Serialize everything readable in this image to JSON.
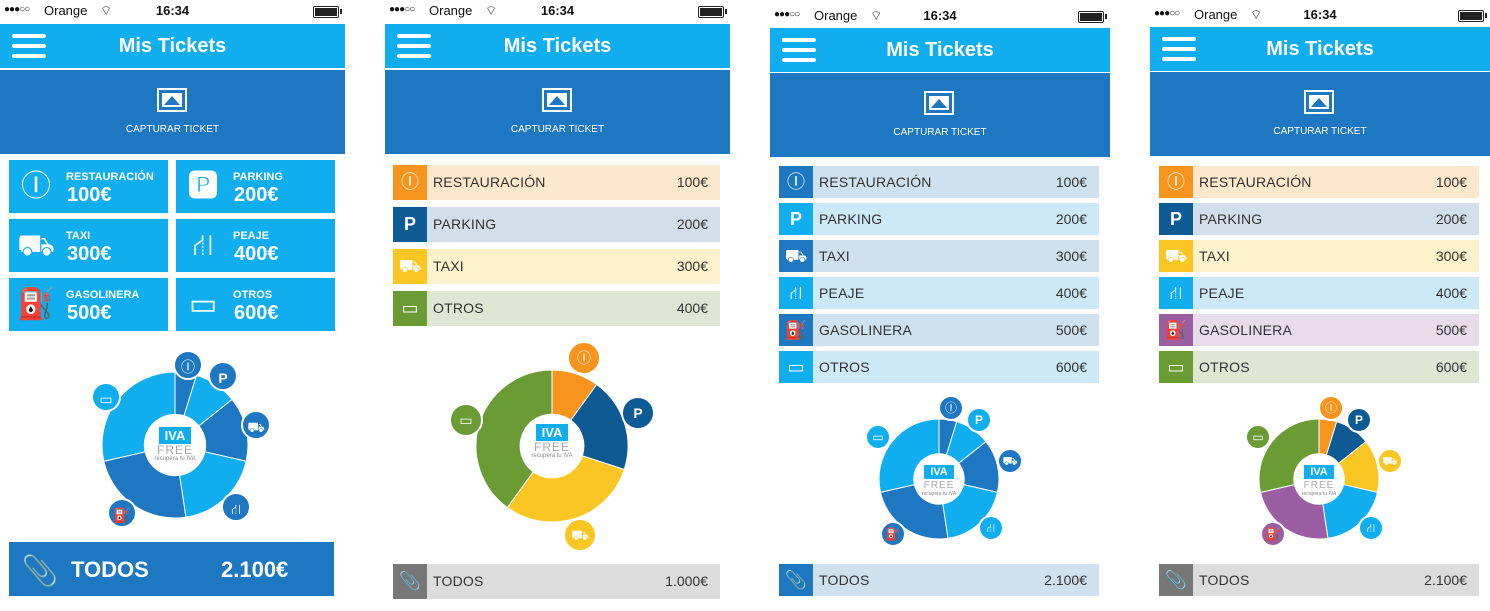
{
  "status": {
    "carrier": "Orange",
    "time": "16:34"
  },
  "header": {
    "title": "Mis Tickets"
  },
  "capture": {
    "label": "CAPTURAR TICKET"
  },
  "brand": {
    "badge": "IVA",
    "free": "FREE",
    "tagline": "recupera tu IVA"
  },
  "colors": {
    "primary": "#10aeef",
    "dark_blue": "#1e77c1",
    "orange": "#f7941d",
    "navy": "#0e5a94",
    "yellow": "#f9c623",
    "green": "#6a9b35",
    "purple": "#9b5ea3",
    "gray": "#777777"
  },
  "phone1": {
    "tiles": [
      {
        "label": "RESTAURACIÓN",
        "value": "100€",
        "icon": "fork-knife-icon"
      },
      {
        "label": "PARKING",
        "value": "200€",
        "icon": "parking-icon"
      },
      {
        "label": "TAXI",
        "value": "300€",
        "icon": "taxi-icon"
      },
      {
        "label": "PEAJE",
        "value": "400€",
        "icon": "road-icon"
      },
      {
        "label": "GASOLINERA",
        "value": "500€",
        "icon": "fuel-icon"
      },
      {
        "label": "OTROS",
        "value": "600€",
        "icon": "wallet-icon"
      }
    ],
    "todos": {
      "label": "TODOS",
      "value": "2.100€"
    }
  },
  "phone2": {
    "rows": [
      {
        "label": "RESTAURACIÓN",
        "value": "100€"
      },
      {
        "label": "PARKING",
        "value": "200€"
      },
      {
        "label": "TAXI",
        "value": "300€"
      },
      {
        "label": "OTROS",
        "value": "400€"
      }
    ],
    "todos": {
      "label": "TODOS",
      "value": "1.000€"
    }
  },
  "phone3": {
    "rows": [
      {
        "label": "RESTAURACIÓN",
        "value": "100€"
      },
      {
        "label": "PARKING",
        "value": "200€"
      },
      {
        "label": "TAXI",
        "value": "300€"
      },
      {
        "label": "PEAJE",
        "value": "400€"
      },
      {
        "label": "GASOLINERA",
        "value": "500€"
      },
      {
        "label": "OTROS",
        "value": "600€"
      }
    ],
    "todos": {
      "label": "TODOS",
      "value": "2.100€"
    }
  },
  "phone4": {
    "rows": [
      {
        "label": "RESTAURACIÓN",
        "value": "100€"
      },
      {
        "label": "PARKING",
        "value": "200€"
      },
      {
        "label": "TAXI",
        "value": "300€"
      },
      {
        "label": "PEAJE",
        "value": "400€"
      },
      {
        "label": "GASOLINERA",
        "value": "500€"
      },
      {
        "label": "OTROS",
        "value": "600€"
      }
    ],
    "todos": {
      "label": "TODOS",
      "value": "2.100€"
    }
  },
  "chart_data": [
    {
      "type": "pie",
      "categories": [
        "RESTAURACIÓN",
        "PARKING",
        "TAXI",
        "PEAJE",
        "GASOLINERA",
        "OTROS"
      ],
      "values": [
        100,
        200,
        300,
        400,
        500,
        600
      ]
    },
    {
      "type": "pie",
      "categories": [
        "RESTAURACIÓN",
        "PARKING",
        "TAXI",
        "OTROS"
      ],
      "values": [
        100,
        200,
        300,
        400
      ]
    },
    {
      "type": "pie",
      "categories": [
        "RESTAURACIÓN",
        "PARKING",
        "TAXI",
        "PEAJE",
        "GASOLINERA",
        "OTROS"
      ],
      "values": [
        100,
        200,
        300,
        400,
        500,
        600
      ]
    },
    {
      "type": "pie",
      "categories": [
        "RESTAURACIÓN",
        "PARKING",
        "TAXI",
        "PEAJE",
        "GASOLINERA",
        "OTROS"
      ],
      "values": [
        100,
        200,
        300,
        400,
        500,
        600
      ]
    }
  ]
}
